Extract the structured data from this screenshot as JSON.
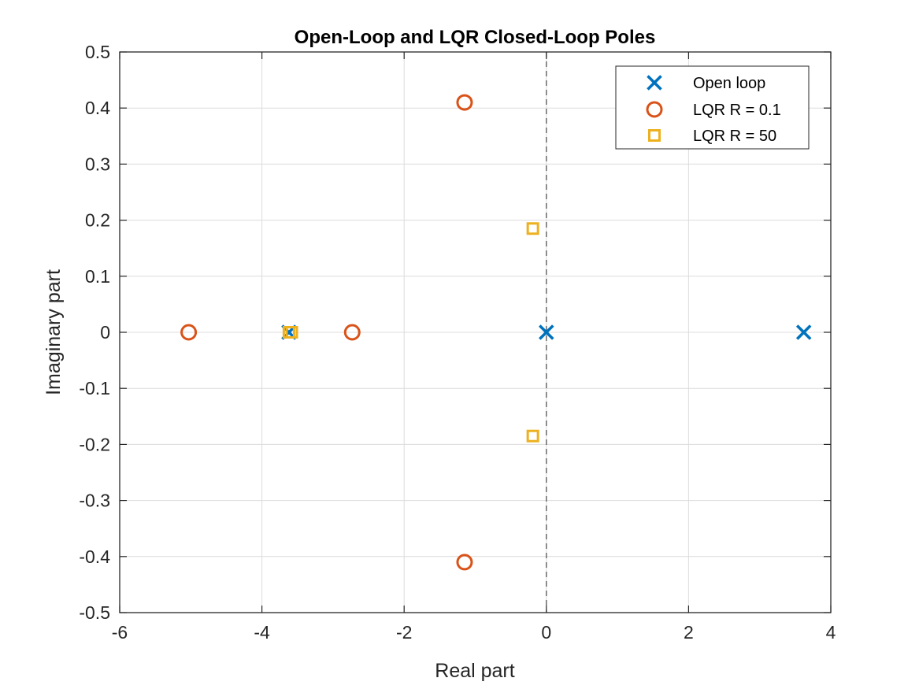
{
  "chart_data": {
    "type": "scatter",
    "title": "Open-Loop and LQR Closed-Loop Poles",
    "xlabel": "Real part",
    "ylabel": "Imaginary part",
    "xlim": [
      -6,
      4
    ],
    "ylim": [
      -0.5,
      0.5
    ],
    "xticks": [
      -6,
      -4,
      -2,
      0,
      2,
      4
    ],
    "xtick_labels": [
      "-6",
      "-4",
      "-2",
      "0",
      "2",
      "4"
    ],
    "yticks": [
      -0.5,
      -0.4,
      -0.3,
      -0.2,
      -0.1,
      0,
      0.1,
      0.2,
      0.3,
      0.4,
      0.5
    ],
    "ytick_labels": [
      "-0.5",
      "-0.4",
      "-0.3",
      "-0.2",
      "-0.1",
      "0",
      "0.1",
      "0.2",
      "0.3",
      "0.4",
      "0.5"
    ],
    "grid": true,
    "reference_line": {
      "x": 0,
      "style": "dashed"
    },
    "legend_position": "top-right",
    "series": [
      {
        "name": "Open loop",
        "marker": "x",
        "color": "#0072BD",
        "points": [
          [
            3.62,
            0
          ],
          [
            0,
            0
          ],
          [
            -3.62,
            0
          ]
        ]
      },
      {
        "name": "LQR R = 0.1",
        "marker": "o",
        "color": "#D95319",
        "points": [
          [
            -5.03,
            0
          ],
          [
            -2.73,
            0
          ],
          [
            -1.15,
            0.41
          ],
          [
            -1.15,
            -0.41
          ]
        ]
      },
      {
        "name": "LQR R = 50",
        "marker": "s",
        "color": "#EDB120",
        "points": [
          [
            -3.62,
            0
          ],
          [
            -3.58,
            0
          ],
          [
            -0.19,
            0.185
          ],
          [
            -0.19,
            -0.185
          ]
        ]
      }
    ]
  }
}
